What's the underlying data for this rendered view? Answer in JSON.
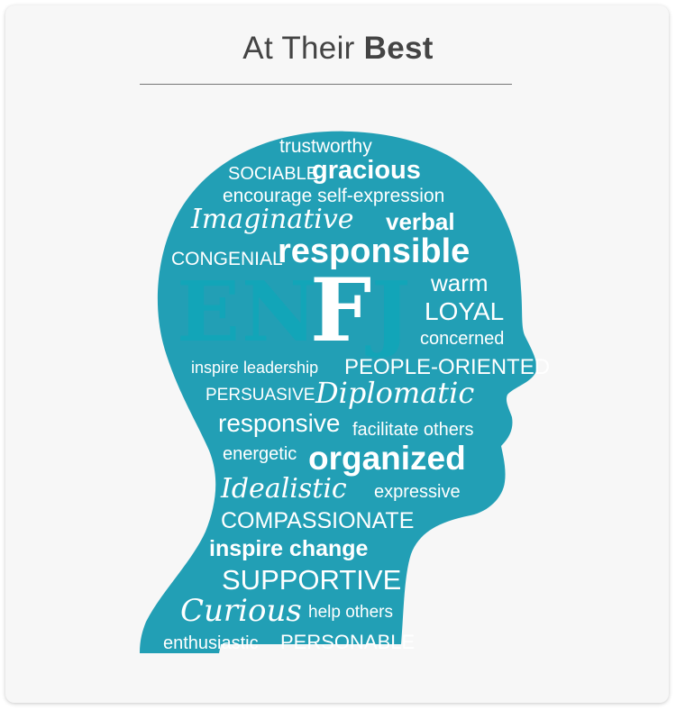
{
  "title": {
    "prefix": "At Their",
    "emphasis": "Best"
  },
  "colors": {
    "head": "#229fb5",
    "background": "#f7f7f7",
    "words": "#ffffff",
    "letters_faded": "#12a5b8"
  },
  "letters": {
    "e": "E",
    "n": "N",
    "f": "F",
    "j": "J"
  },
  "words": {
    "trustworthy": "trustworthy",
    "sociable": "SOCIABLE",
    "gracious": "gracious",
    "encourage": "encourage self-expression",
    "imaginative": "Imaginative",
    "verbal": "verbal",
    "congenial": "CONGENIAL",
    "responsible": "responsible",
    "warm": "warm",
    "loyal": "LOYAL",
    "concerned": "concerned",
    "inspire_leadership": "inspire leadership",
    "people_oriented": "PEOPLE-ORIENTED",
    "persuasive": "PERSUASIVE",
    "diplomatic": "Diplomatic",
    "responsive": "responsive",
    "facilitate": "facilitate others",
    "energetic": "energetic",
    "organized": "organized",
    "idealistic": "Idealistic",
    "expressive": "expressive",
    "compassionate": "COMPASSIONATE",
    "inspire_change": "inspire change",
    "supportive": "SUPPORTIVE",
    "curious": "Curious",
    "help_others": "help others",
    "enthusiastic": "enthusiastic",
    "personable": "PERSONABLE"
  }
}
